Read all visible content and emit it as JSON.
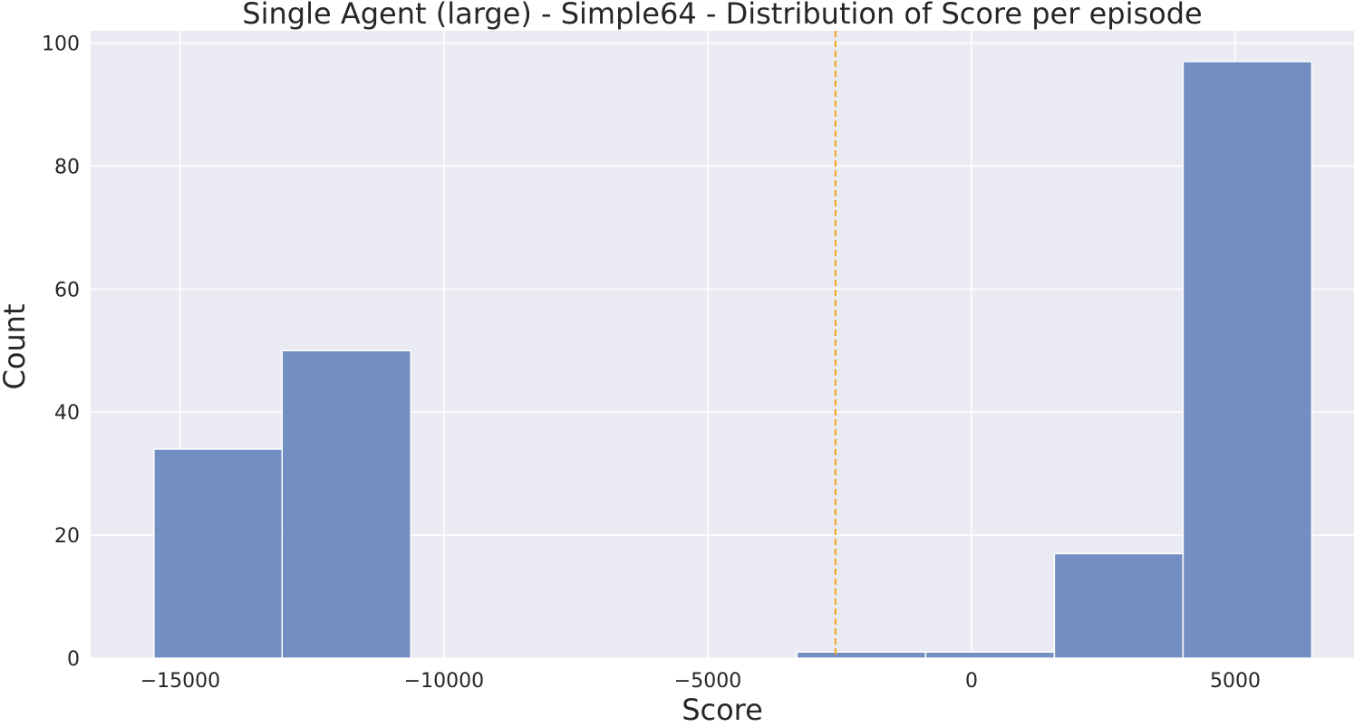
{
  "chart_data": {
    "type": "bar",
    "title": "Single Agent (large) - Simple64 - Distribution of Score per episode",
    "xlabel": "Score",
    "ylabel": "Count",
    "xlim": [
      -16700,
      7250
    ],
    "ylim": [
      0,
      102
    ],
    "x_ticks": [
      -15000,
      -10000,
      -5000,
      0,
      5000
    ],
    "x_tick_labels": [
      "−15000",
      "−10000",
      "−5000",
      "0",
      "5000"
    ],
    "y_ticks": [
      0,
      20,
      40,
      60,
      80,
      100
    ],
    "y_tick_labels": [
      "0",
      "20",
      "40",
      "60",
      "80",
      "100"
    ],
    "bins": [
      {
        "x0": -15500,
        "x1": -13070,
        "count": 34
      },
      {
        "x0": -13070,
        "x1": -10630,
        "count": 50
      },
      {
        "x0": -10630,
        "x1": -8190,
        "count": 0
      },
      {
        "x0": -8190,
        "x1": -5750,
        "count": 0
      },
      {
        "x0": -5750,
        "x1": -3310,
        "count": 0
      },
      {
        "x0": -3310,
        "x1": -870,
        "count": 1
      },
      {
        "x0": -870,
        "x1": 1570,
        "count": 1
      },
      {
        "x0": 1570,
        "x1": 4010,
        "count": 17
      },
      {
        "x0": 4010,
        "x1": 6450,
        "count": 97
      }
    ],
    "mean_line": {
      "x": -2580,
      "style": "dashed"
    },
    "grid": true,
    "colors": {
      "background": "#eaeaf2",
      "grid": "#ffffff",
      "bar": "#6584bc",
      "bar_edge": "#ffffff",
      "mean_line": "#f5a31a"
    }
  }
}
